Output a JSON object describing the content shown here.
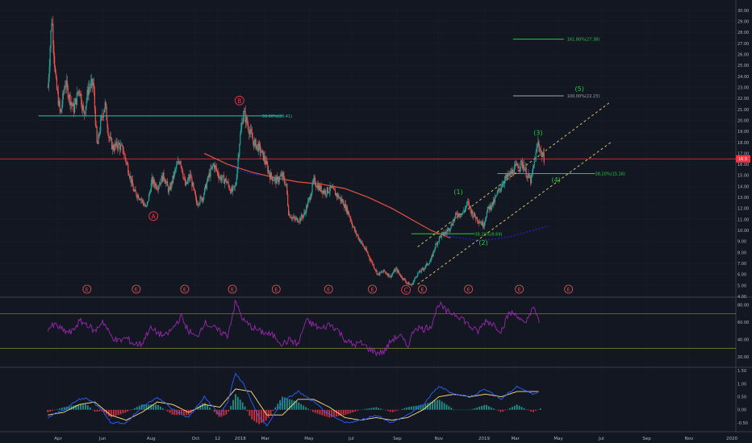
{
  "chart_data": {
    "type": "candlestick",
    "price": {
      "ylim": [
        4,
        30.5
      ],
      "yticks": [
        "30.00",
        "29.00",
        "28.00",
        "27.00",
        "26.00",
        "25.00",
        "24.00",
        "23.00",
        "22.00",
        "21.00",
        "20.00",
        "19.00",
        "18.00",
        "17.00",
        "16.00",
        "15.00",
        "14.00",
        "13.00",
        "12.00",
        "11.00",
        "10.00",
        "9.00",
        "8.00",
        "7.00",
        "6.00",
        "5.00",
        "4.00"
      ],
      "last_price": 16.5,
      "last_price_label": "16.5",
      "close_path": [
        [
          0.0,
          23.0
        ],
        [
          0.5,
          29.5
        ],
        [
          1.0,
          23.5
        ],
        [
          1.6,
          20.5
        ],
        [
          2.2,
          23.5
        ],
        [
          2.8,
          22.0
        ],
        [
          3.3,
          21.0
        ],
        [
          4.0,
          23.0
        ],
        [
          4.6,
          20.5
        ],
        [
          5.2,
          23.0
        ],
        [
          5.8,
          23.3
        ],
        [
          6.3,
          17.5
        ],
        [
          6.8,
          20.0
        ],
        [
          7.3,
          21.5
        ],
        [
          7.8,
          18.5
        ],
        [
          8.3,
          17.5
        ],
        [
          9.0,
          17.8
        ],
        [
          9.6,
          17.3
        ],
        [
          10.3,
          15.5
        ],
        [
          11.0,
          13.5
        ],
        [
          11.8,
          13.0
        ],
        [
          12.6,
          12.0
        ],
        [
          13.3,
          14.5
        ],
        [
          14.0,
          14.0
        ],
        [
          14.8,
          15.0
        ],
        [
          15.5,
          13.5
        ],
        [
          16.3,
          15.5
        ],
        [
          16.9,
          16.5
        ],
        [
          17.6,
          14.0
        ],
        [
          18.2,
          15.0
        ],
        [
          19.0,
          12.5
        ],
        [
          19.8,
          13.0
        ],
        [
          20.6,
          15.0
        ],
        [
          21.2,
          16.0
        ],
        [
          22.0,
          14.8
        ],
        [
          22.8,
          14.5
        ],
        [
          23.5,
          13.5
        ],
        [
          24.0,
          14.0
        ],
        [
          24.5,
          18.0
        ],
        [
          25.0,
          20.8
        ],
        [
          25.6,
          19.5
        ],
        [
          26.3,
          18.0
        ],
        [
          27.0,
          17.5
        ],
        [
          27.7,
          16.5
        ],
        [
          28.4,
          15.0
        ],
        [
          29.2,
          14.5
        ],
        [
          30.0,
          15.0
        ],
        [
          30.5,
          14.0
        ],
        [
          30.8,
          11.5
        ],
        [
          31.5,
          11.0
        ],
        [
          32.2,
          11.0
        ],
        [
          32.8,
          11.5
        ],
        [
          33.5,
          13.0
        ],
        [
          34.0,
          14.5
        ],
        [
          34.8,
          13.8
        ],
        [
          35.5,
          13.5
        ],
        [
          36.2,
          13.8
        ],
        [
          37.0,
          13.2
        ],
        [
          37.8,
          12.5
        ],
        [
          38.5,
          11.5
        ],
        [
          39.2,
          10.0
        ],
        [
          40.0,
          9.0
        ],
        [
          40.8,
          8.0
        ],
        [
          41.5,
          7.0
        ],
        [
          42.2,
          6.0
        ],
        [
          43.0,
          6.3
        ],
        [
          43.8,
          5.8
        ],
        [
          44.5,
          6.5
        ],
        [
          45.2,
          5.8
        ],
        [
          46.0,
          5.2
        ],
        [
          46.5,
          5.0
        ],
        [
          47.2,
          6.0
        ],
        [
          48.0,
          6.5
        ],
        [
          48.6,
          7.0
        ],
        [
          49.0,
          7.3
        ],
        [
          49.5,
          8.5
        ],
        [
          50.2,
          9.5
        ],
        [
          50.9,
          9.8
        ],
        [
          51.6,
          10.5
        ],
        [
          52.3,
          11.5
        ],
        [
          53.0,
          11.5
        ],
        [
          53.7,
          12.5
        ],
        [
          54.3,
          11.5
        ],
        [
          55.0,
          11.0
        ],
        [
          55.7,
          10.5
        ],
        [
          56.3,
          12.0
        ],
        [
          57.0,
          12.5
        ],
        [
          57.6,
          13.5
        ],
        [
          58.3,
          14.5
        ],
        [
          59.0,
          15.0
        ],
        [
          59.6,
          15.5
        ],
        [
          60.2,
          16.0
        ],
        [
          60.8,
          16.0
        ],
        [
          61.3,
          15.0
        ],
        [
          61.8,
          14.5
        ],
        [
          62.3,
          16.5
        ],
        [
          62.7,
          18.0
        ],
        [
          63.1,
          17.0
        ],
        [
          63.5,
          16.5
        ]
      ],
      "ma_red": [
        [
          20,
          17.0
        ],
        [
          23,
          16.0
        ],
        [
          26,
          15.3
        ],
        [
          29,
          14.8
        ],
        [
          32,
          14.4
        ],
        [
          35,
          14.2
        ],
        [
          38,
          13.8
        ],
        [
          41,
          13.0
        ],
        [
          44,
          12.0
        ],
        [
          47,
          10.8
        ],
        [
          49,
          10.0
        ],
        [
          51.5,
          9.3
        ]
      ],
      "ma_blue": [
        [
          23.5,
          15.8
        ],
        [
          25.5,
          15.2
        ],
        [
          27.5,
          15.0
        ],
        [
          51,
          9.5
        ],
        [
          53,
          9.3
        ],
        [
          55,
          9.1
        ],
        [
          57,
          9.2
        ],
        [
          59,
          9.4
        ],
        [
          61,
          9.8
        ],
        [
          63,
          10.2
        ],
        [
          64,
          10.4
        ]
      ],
      "hlines": [
        {
          "label": "50.00%(20.41)",
          "y": 20.41,
          "x0": -1.2,
          "x1": 30.0,
          "label_x": 27.4,
          "color": "#26c6b4"
        },
        {
          "label": "161.80%(27.38)",
          "y": 27.38,
          "x0": 59.5,
          "x1": 66.0,
          "label_x": 66.4,
          "color": "#27c93f"
        },
        {
          "label": "100.00%(22.23)",
          "y": 22.23,
          "x0": 59.5,
          "x1": 66.0,
          "label_x": 66.4,
          "color": "#a0a4ab"
        },
        {
          "label": "38.20%(15.16)",
          "y": 15.16,
          "x0": 57.5,
          "x1": 70.0,
          "label_x": 70.0,
          "color": "#27c93f"
        },
        {
          "label": "38.20%(9.69)",
          "y": 9.69,
          "x0": 46.5,
          "x1": 54.6,
          "label_x": 54.6,
          "color": "#27c93f"
        }
      ],
      "channel": [
        {
          "from": [
            47.3,
            8.5
          ],
          "to": [
            72.0,
            21.7
          ]
        },
        {
          "from": [
            47.3,
            5.1
          ],
          "to": [
            72.0,
            18.0
          ]
        }
      ],
      "wave_labels": [
        {
          "text": "A",
          "x": 13.5,
          "y": 11.3,
          "circled": true,
          "color": "#f23645"
        },
        {
          "text": "B",
          "x": 24.5,
          "y": 21.8,
          "circled": true,
          "color": "#f23645"
        },
        {
          "text": "C",
          "x": 45.8,
          "y": 4.6,
          "circled": true,
          "color": "#f23645"
        },
        {
          "text": "(1)",
          "x": 52.5,
          "y": 13.5,
          "circled": false,
          "color": "#27c93f"
        },
        {
          "text": "(2)",
          "x": 55.7,
          "y": 8.9,
          "circled": false,
          "color": "#27c93f"
        },
        {
          "text": "(3)",
          "x": 62.7,
          "y": 18.9,
          "circled": false,
          "color": "#27c93f"
        },
        {
          "text": "(4)",
          "x": 65.0,
          "y": 14.6,
          "circled": false,
          "color": "#27c93f"
        },
        {
          "text": "(5)",
          "x": 68.0,
          "y": 22.9,
          "circled": false,
          "color": "#27c93f"
        }
      ],
      "earnings_x": [
        5.0,
        11.3,
        17.5,
        23.6,
        29.2,
        35.9,
        41.5,
        47.9,
        53.8,
        60.3,
        66.6
      ],
      "earnings_label": "E"
    },
    "rsi": {
      "ylim": [
        10,
        88
      ],
      "yticks": [
        "80.00",
        "60.00",
        "40.00",
        "20.00"
      ],
      "upper": 70,
      "lower": 30,
      "path": [
        [
          0,
          53
        ],
        [
          1,
          57
        ],
        [
          2,
          50
        ],
        [
          3,
          48
        ],
        [
          4,
          61
        ],
        [
          5,
          58
        ],
        [
          6,
          49
        ],
        [
          7,
          62
        ],
        [
          8,
          45
        ],
        [
          9,
          38
        ],
        [
          10,
          42
        ],
        [
          11,
          35
        ],
        [
          12,
          35
        ],
        [
          13,
          53
        ],
        [
          14,
          48
        ],
        [
          15,
          44
        ],
        [
          16,
          53
        ],
        [
          17,
          67
        ],
        [
          18,
          50
        ],
        [
          19,
          42
        ],
        [
          20,
          60
        ],
        [
          21,
          55
        ],
        [
          22,
          49
        ],
        [
          23,
          45
        ],
        [
          24,
          84
        ],
        [
          25,
          62
        ],
        [
          26,
          55
        ],
        [
          27,
          50
        ],
        [
          28,
          47
        ],
        [
          29,
          44
        ],
        [
          30,
          35
        ],
        [
          31,
          40
        ],
        [
          32,
          34
        ],
        [
          33,
          62
        ],
        [
          34,
          57
        ],
        [
          35,
          52
        ],
        [
          36,
          58
        ],
        [
          37,
          52
        ],
        [
          38,
          40
        ],
        [
          39,
          34
        ],
        [
          40,
          36
        ],
        [
          41,
          30
        ],
        [
          42,
          25
        ],
        [
          43,
          26
        ],
        [
          44,
          40
        ],
        [
          45,
          45
        ],
        [
          46,
          32
        ],
        [
          47,
          55
        ],
        [
          48,
          52
        ],
        [
          49,
          56
        ],
        [
          50,
          82
        ],
        [
          51,
          72
        ],
        [
          52,
          70
        ],
        [
          53,
          65
        ],
        [
          54,
          55
        ],
        [
          55,
          49
        ],
        [
          56,
          62
        ],
        [
          57,
          58
        ],
        [
          58,
          50
        ],
        [
          59,
          71
        ],
        [
          60,
          69
        ],
        [
          61,
          56
        ],
        [
          62,
          78
        ],
        [
          63,
          57
        ]
      ]
    },
    "macd": {
      "ylim": [
        -0.75,
        1.6
      ],
      "yticks": [
        "1.50",
        "1.00",
        "0.50",
        "0.00",
        "-0.50"
      ],
      "macd_line": [
        [
          0,
          -0.3
        ],
        [
          2,
          0.0
        ],
        [
          4,
          0.4
        ],
        [
          5,
          0.45
        ],
        [
          7,
          0.0
        ],
        [
          8,
          -0.5
        ],
        [
          10,
          -0.5
        ],
        [
          12,
          0.1
        ],
        [
          14,
          0.5
        ],
        [
          16,
          0.0
        ],
        [
          18,
          -0.3
        ],
        [
          20,
          0.5
        ],
        [
          22,
          -0.2
        ],
        [
          23,
          0.3
        ],
        [
          24,
          1.4
        ],
        [
          25,
          1.0
        ],
        [
          27,
          -0.3
        ],
        [
          28,
          -0.6
        ],
        [
          30,
          0.3
        ],
        [
          32,
          0.7
        ],
        [
          34,
          0.3
        ],
        [
          36,
          -0.2
        ],
        [
          38,
          -0.5
        ],
        [
          40,
          -0.4
        ],
        [
          42,
          -0.2
        ],
        [
          44,
          -0.5
        ],
        [
          46,
          -0.2
        ],
        [
          48,
          0.2
        ],
        [
          50,
          0.9
        ],
        [
          52,
          0.6
        ],
        [
          54,
          0.5
        ],
        [
          56,
          0.8
        ],
        [
          58,
          0.4
        ],
        [
          60,
          0.9
        ],
        [
          62,
          0.6
        ],
        [
          63,
          0.75
        ]
      ],
      "signal_line": [
        [
          0,
          -0.2
        ],
        [
          2,
          -0.1
        ],
        [
          4,
          0.2
        ],
        [
          6,
          0.3
        ],
        [
          8,
          -0.2
        ],
        [
          10,
          -0.4
        ],
        [
          12,
          -0.1
        ],
        [
          14,
          0.3
        ],
        [
          16,
          0.2
        ],
        [
          18,
          -0.1
        ],
        [
          20,
          0.2
        ],
        [
          22,
          0.1
        ],
        [
          24,
          0.8
        ],
        [
          26,
          0.7
        ],
        [
          28,
          -0.2
        ],
        [
          30,
          -0.2
        ],
        [
          32,
          0.4
        ],
        [
          34,
          0.4
        ],
        [
          36,
          0.1
        ],
        [
          38,
          -0.3
        ],
        [
          40,
          -0.4
        ],
        [
          42,
          -0.3
        ],
        [
          44,
          -0.4
        ],
        [
          46,
          -0.3
        ],
        [
          48,
          0.0
        ],
        [
          50,
          0.5
        ],
        [
          52,
          0.6
        ],
        [
          54,
          0.5
        ],
        [
          56,
          0.6
        ],
        [
          58,
          0.5
        ],
        [
          60,
          0.7
        ],
        [
          62,
          0.7
        ],
        [
          63,
          0.7
        ]
      ]
    },
    "x_ticks": [
      {
        "label": "Apr",
        "x": 1.3
      },
      {
        "label": "Jun",
        "x": 7.0
      },
      {
        "label": "Aug",
        "x": 13.2
      },
      {
        "label": "Oct",
        "x": 18.9
      },
      {
        "label": "12",
        "x": 21.7
      },
      {
        "label": "2018",
        "x": 24.6
      },
      {
        "label": "Mar",
        "x": 27.8
      },
      {
        "label": "May",
        "x": 33.4
      },
      {
        "label": "Jul",
        "x": 38.8
      },
      {
        "label": "Sep",
        "x": 44.7
      },
      {
        "label": "Nov",
        "x": 50.0
      },
      {
        "label": "2019",
        "x": 55.8
      },
      {
        "label": "Mar",
        "x": 59.8
      },
      {
        "label": "May",
        "x": 65.3
      },
      {
        "label": "Jul",
        "x": 70.8
      },
      {
        "label": "Sep",
        "x": 76.6
      },
      {
        "label": "Nov",
        "x": 82.0
      },
      {
        "label": "2020",
        "x": 87.5
      }
    ],
    "xlim": [
      -2,
      88
    ],
    "colors": {
      "background": "#131722",
      "up": "#26a69a",
      "down": "#ef5350",
      "grid": "#2a2e39",
      "axis_text": "#b2b5be",
      "rsi": "#9c27b0",
      "rsi_band": "#7a7a26",
      "macd": "#2962ff",
      "signal": "#ffe082",
      "hist_up": "#26a69a",
      "hist_down": "#f23645",
      "last_price": "#f23645",
      "ma_red": "#e65338",
      "ma_blue": "#1e22c7"
    }
  }
}
